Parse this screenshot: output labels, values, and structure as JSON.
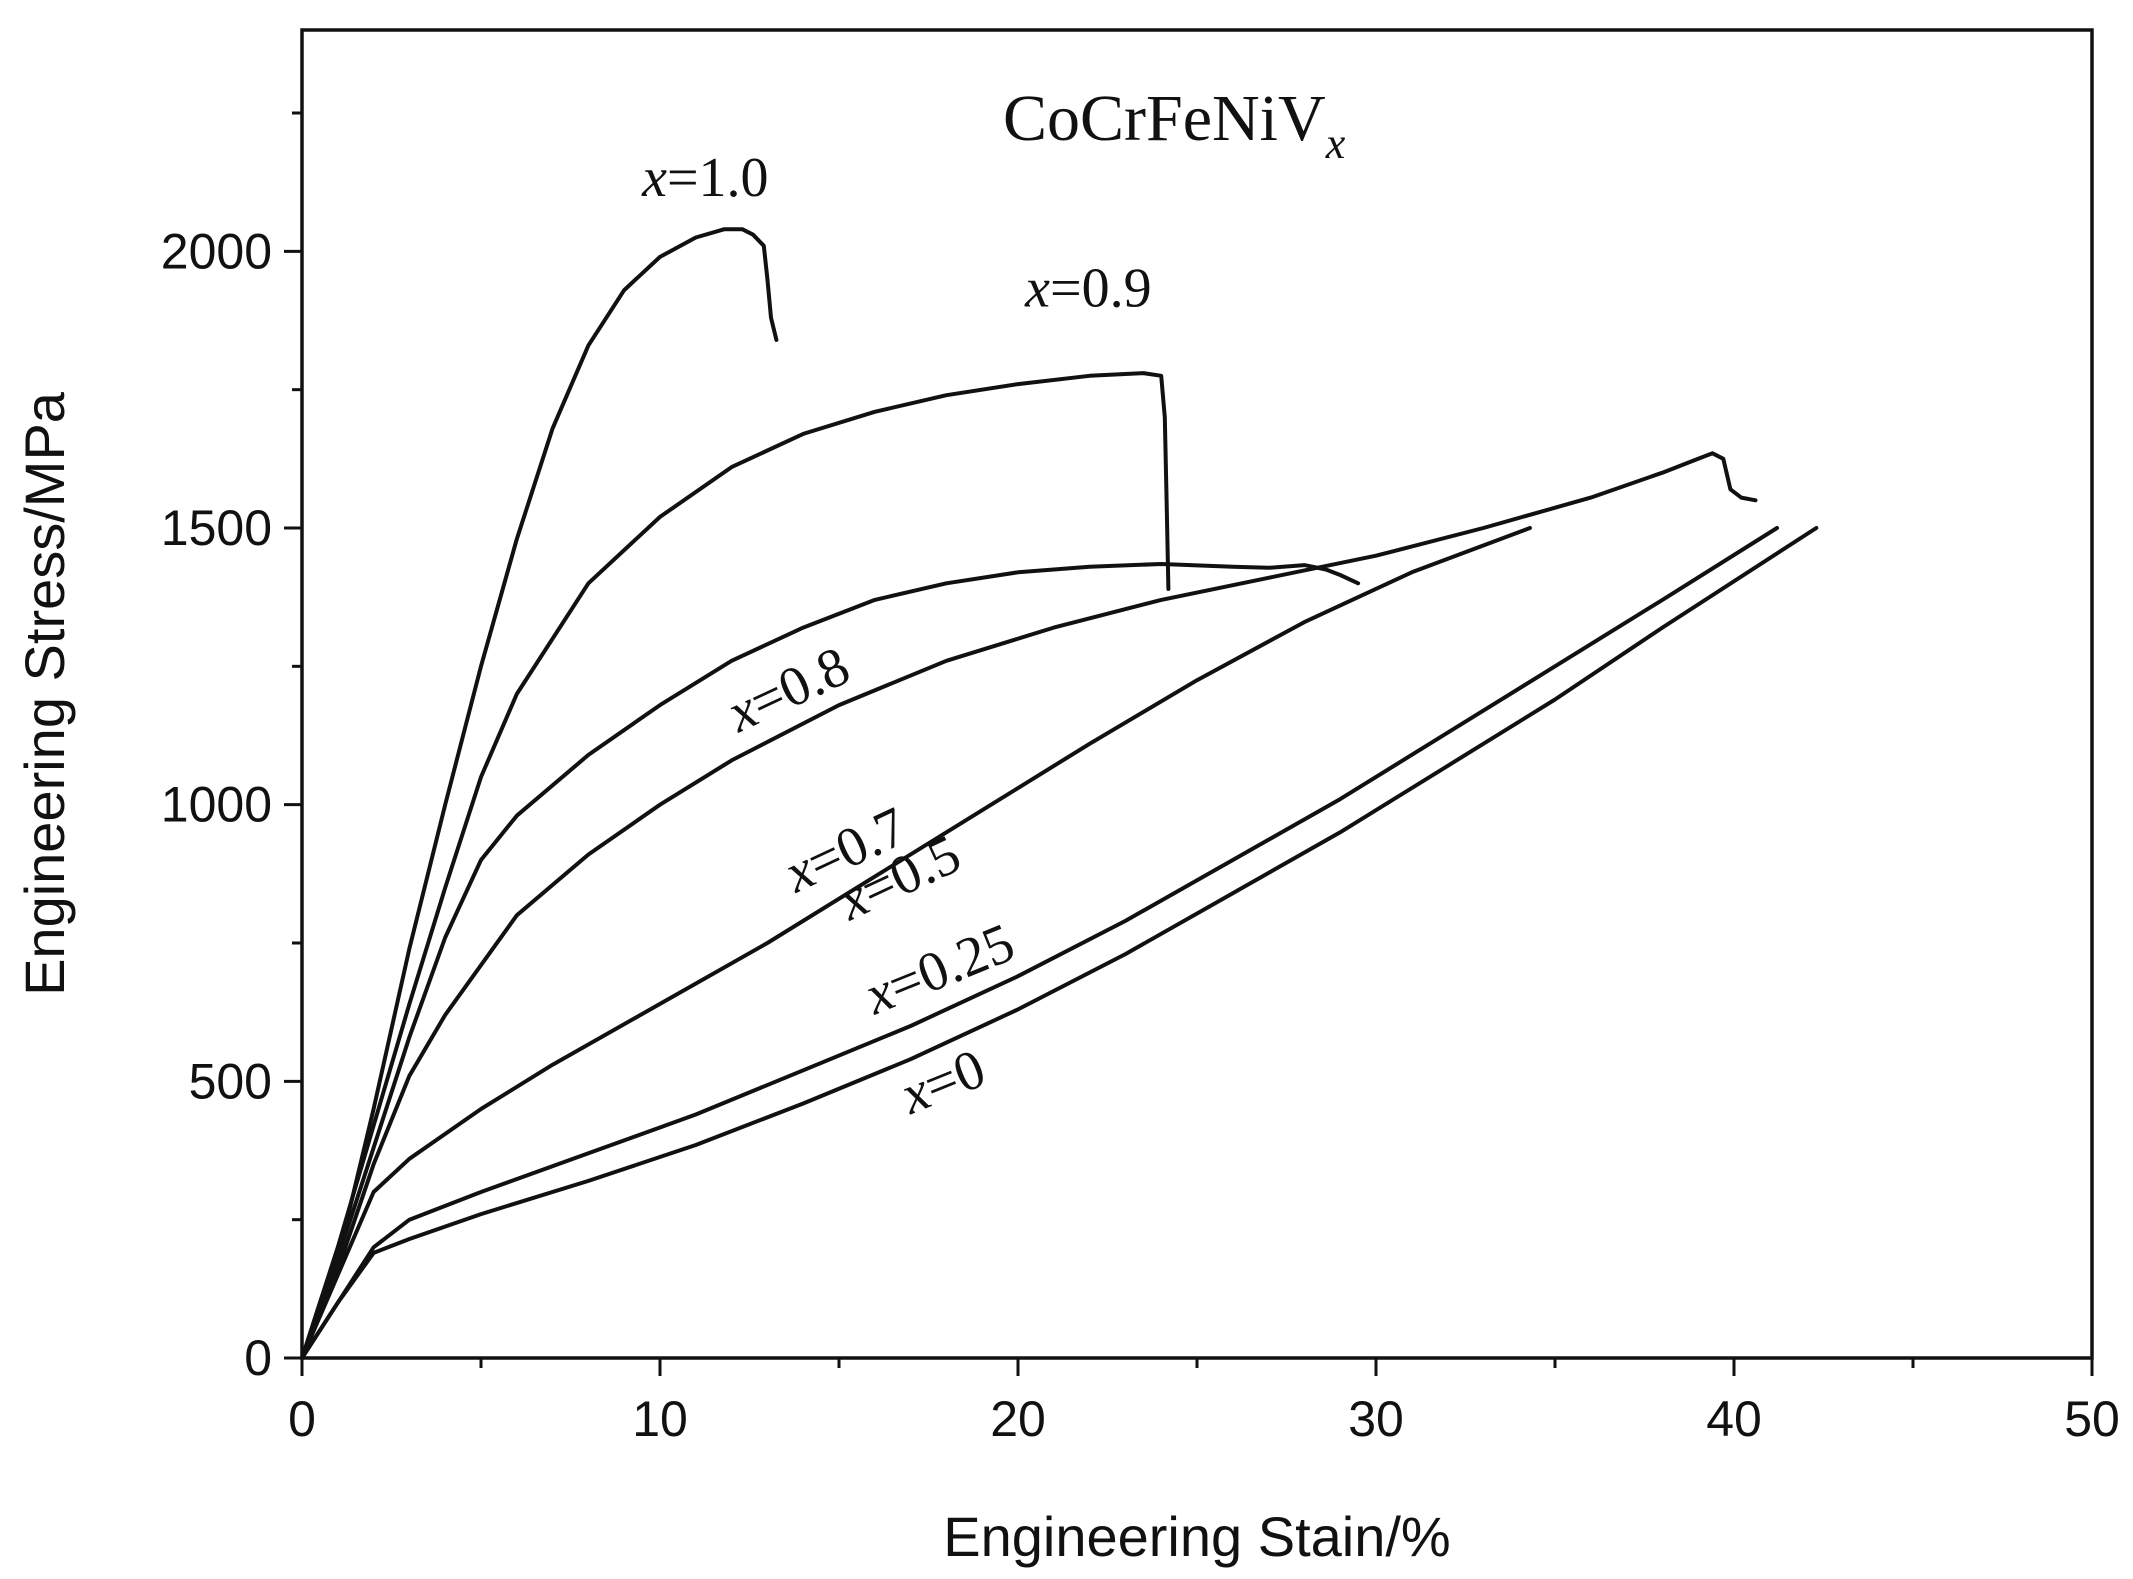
{
  "chart_data": {
    "type": "line",
    "title": "CoCrFeNiV",
    "title_subscript": "x",
    "xlabel": "Engineering Stain/%",
    "ylabel": "Engineering Stress/MPa",
    "xlim": [
      0,
      50
    ],
    "ylim": [
      0,
      2400
    ],
    "xticks": [
      0,
      10,
      20,
      30,
      40,
      50
    ],
    "xtick_labels": [
      "0",
      "10",
      "20",
      "30",
      "40",
      "50"
    ],
    "xminor": [
      5,
      15,
      25,
      35,
      45
    ],
    "yticks": [
      0,
      500,
      1000,
      1500,
      2000
    ],
    "ytick_labels": [
      "0",
      "500",
      "1000",
      "1500",
      "2000"
    ],
    "yminor": [
      250,
      750,
      1250,
      1750,
      2250
    ],
    "grid": false,
    "series": [
      {
        "name": "x=1.0",
        "var": "x",
        "eq": "=",
        "num": "1.0",
        "label_at": [
          9.5,
          2100
        ],
        "label_angle": 0,
        "x": [
          0,
          1,
          2,
          3,
          4,
          5,
          6,
          7,
          8,
          9,
          10,
          11,
          11.8,
          12.3,
          12.6,
          12.9,
          13.0,
          13.1,
          13.25
        ],
        "y": [
          0,
          180,
          450,
          740,
          1000,
          1250,
          1480,
          1680,
          1830,
          1930,
          1990,
          2025,
          2040,
          2040,
          2030,
          2010,
          1950,
          1880,
          1840
        ]
      },
      {
        "name": "x=0.9",
        "var": "x",
        "eq": "=",
        "num": "0.9",
        "label_at": [
          20.2,
          1900
        ],
        "label_angle": 0,
        "x": [
          0,
          1,
          2,
          3,
          4,
          5,
          6,
          8,
          10,
          12,
          14,
          16,
          18,
          20,
          22,
          23.5,
          24.0,
          24.1,
          24.15,
          24.2
        ],
        "y": [
          0,
          200,
          420,
          640,
          850,
          1050,
          1200,
          1400,
          1520,
          1610,
          1670,
          1710,
          1740,
          1760,
          1775,
          1780,
          1775,
          1700,
          1550,
          1390
        ]
      },
      {
        "name": "x=0.8",
        "var": "x",
        "eq": "=",
        "num": "0.8",
        "label_at": [
          12.2,
          1130
        ],
        "label_angle": -25,
        "x": [
          0,
          1,
          2,
          3,
          4,
          5,
          6,
          8,
          10,
          12,
          14,
          16,
          18,
          20,
          22,
          24,
          26,
          27,
          28,
          28.6,
          29,
          29.5
        ],
        "y": [
          0,
          180,
          380,
          580,
          760,
          900,
          980,
          1090,
          1180,
          1260,
          1320,
          1370,
          1400,
          1420,
          1430,
          1435,
          1430,
          1428,
          1433,
          1425,
          1415,
          1400
        ]
      },
      {
        "name": "x=0.7",
        "var": "x",
        "eq": "=",
        "num": "0.7",
        "label_at": [
          13.8,
          840
        ],
        "label_angle": -25,
        "x": [
          0,
          1,
          2,
          3,
          4,
          6,
          8,
          10,
          12,
          15,
          18,
          21,
          24,
          27,
          30,
          33,
          36,
          38,
          39,
          39.4,
          39.7,
          39.9,
          40.2,
          40.6
        ],
        "y": [
          0,
          160,
          350,
          510,
          620,
          800,
          910,
          1000,
          1080,
          1180,
          1260,
          1320,
          1370,
          1410,
          1450,
          1500,
          1555,
          1600,
          1625,
          1635,
          1625,
          1570,
          1555,
          1550
        ]
      },
      {
        "name": "x=0.5",
        "var": "x",
        "eq": "=",
        "num": "0.5",
        "label_at": [
          15.3,
          790
        ],
        "label_angle": -25,
        "x": [
          0,
          1,
          2,
          3,
          5,
          7,
          10,
          13,
          16,
          19,
          22,
          25,
          28,
          31,
          34.3
        ],
        "y": [
          0,
          150,
          300,
          360,
          450,
          530,
          640,
          750,
          870,
          990,
          1110,
          1225,
          1330,
          1420,
          1500
        ]
      },
      {
        "name": "x=0.25",
        "var": "x",
        "eq": "=",
        "num": "0.25",
        "label_at": [
          16.0,
          620
        ],
        "label_angle": -22,
        "x": [
          0,
          1,
          2,
          3,
          5,
          8,
          11,
          14,
          17,
          20,
          23,
          26,
          29,
          32,
          35,
          38,
          41.2
        ],
        "y": [
          0,
          100,
          200,
          250,
          300,
          370,
          440,
          520,
          600,
          690,
          790,
          900,
          1010,
          1130,
          1250,
          1370,
          1500
        ]
      },
      {
        "name": "x=0",
        "var": "x",
        "eq": "=",
        "num": "0",
        "label_at": [
          17.0,
          440
        ],
        "label_angle": -22,
        "x": [
          0,
          1,
          2,
          3,
          5,
          8,
          11,
          14,
          17,
          20,
          23,
          26,
          29,
          32,
          35,
          38,
          42.3
        ],
        "y": [
          0,
          100,
          190,
          215,
          260,
          320,
          385,
          460,
          540,
          630,
          730,
          840,
          950,
          1070,
          1190,
          1320,
          1500
        ]
      }
    ]
  }
}
